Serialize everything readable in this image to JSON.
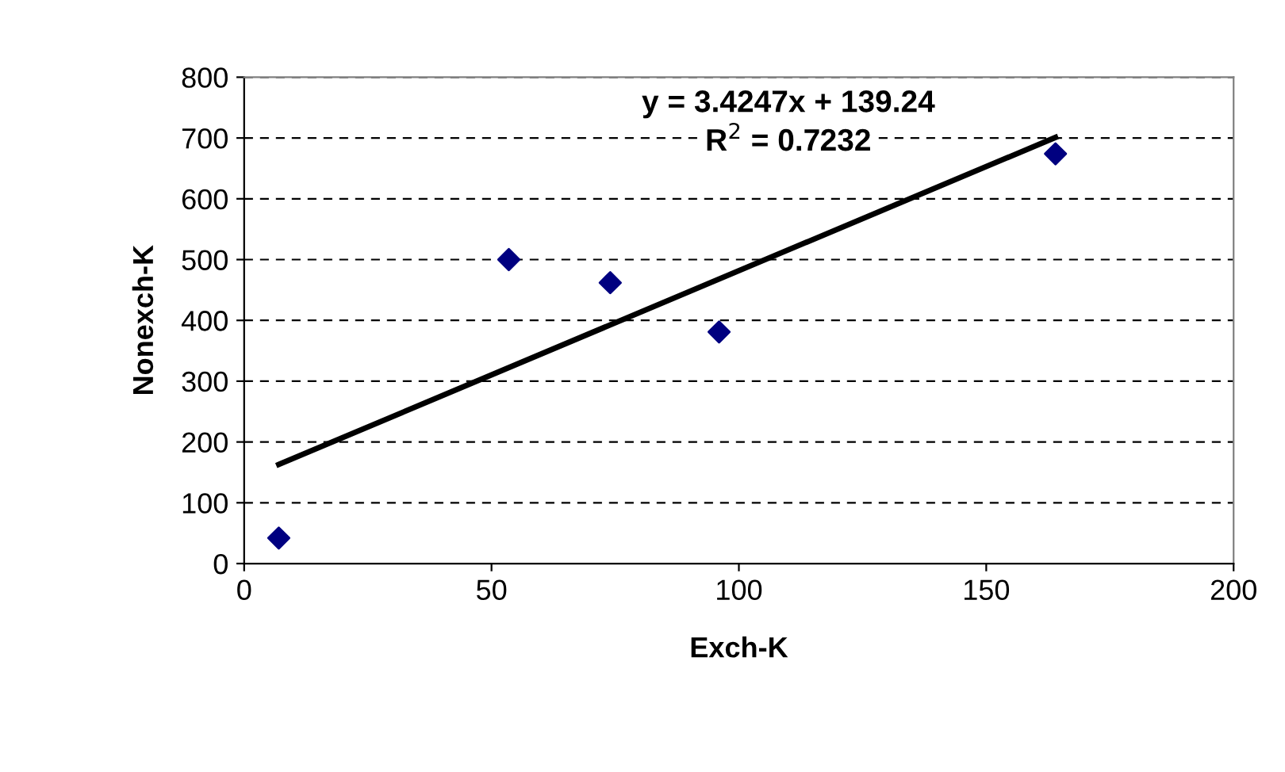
{
  "chart_data": {
    "type": "scatter",
    "xlabel": "Exch-K",
    "ylabel": "Nonexch-K",
    "series": [
      {
        "type": "scatter",
        "color": "#000080",
        "marker": "diamond",
        "x": [
          7,
          53.5,
          74,
          96,
          164
        ],
        "values": [
          42,
          500,
          462,
          381,
          674
        ]
      },
      {
        "type": "line",
        "color": "#000000",
        "marker": "none",
        "line_style": "solid",
        "x": [
          7,
          164
        ],
        "values": [
          163,
          701
        ]
      }
    ],
    "annotations": [
      "y = 3.4247x + 139.24",
      "R$^{2}$ = 0.7232"
    ],
    "xlim": [
      0,
      200
    ],
    "xticks": [
      0,
      50,
      100,
      150,
      200
    ],
    "ylim": [
      0,
      800
    ],
    "yticks": [
      0,
      100,
      200,
      300,
      400,
      500,
      600,
      700,
      800
    ],
    "grid": "y",
    "legend": false
  }
}
